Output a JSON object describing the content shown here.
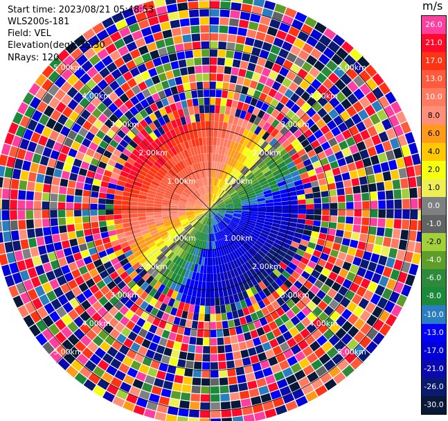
{
  "info": {
    "start_time": "Start time: 2023/08/21 05:48:53",
    "instrument": "WLS200s-181",
    "field": "Field: VEL",
    "elevation": "Elevation(deg): 35.30",
    "nrays": "NRays: 120"
  },
  "colorbar": {
    "unit": "m/s",
    "levels": [
      {
        "value": 26.0,
        "label": "26.0",
        "color": "#ff3fa0"
      },
      {
        "value": 21.0,
        "label": "21.0",
        "color": "#ff0a2a"
      },
      {
        "value": 17.0,
        "label": "17.0",
        "color": "#ff3414"
      },
      {
        "value": 13.0,
        "label": "13.0",
        "color": "#ff5a3c"
      },
      {
        "value": 10.0,
        "label": "10.0",
        "color": "#ff7a60"
      },
      {
        "value": 8.0,
        "label": "8.0",
        "color": "#ff8f78"
      },
      {
        "value": 6.0,
        "label": "6.0",
        "color": "#ff9a1a"
      },
      {
        "value": 4.0,
        "label": "4.0",
        "color": "#ffc800"
      },
      {
        "value": 2.0,
        "label": "2.0",
        "color": "#f5ff10"
      },
      {
        "value": 1.0,
        "label": "1.0",
        "color": "#eeee55"
      },
      {
        "value": 0.0,
        "label": "0.0",
        "color": "#7f8082"
      },
      {
        "value": -1.0,
        "label": "-1.0",
        "color": "#626364"
      },
      {
        "value": -2.0,
        "label": "-2.0",
        "color": "#a2cf3a"
      },
      {
        "value": -4.0,
        "label": "-4.0",
        "color": "#5c9e28"
      },
      {
        "value": -6.0,
        "label": "-6.0",
        "color": "#2d8a3a"
      },
      {
        "value": -8.0,
        "label": "-8.0",
        "color": "#1a8a3a"
      },
      {
        "value": -10.0,
        "label": "-10.0",
        "color": "#2a7ec0"
      },
      {
        "value": -13.0,
        "label": "-13.0",
        "color": "#0000ff"
      },
      {
        "value": -17.0,
        "label": "-17.0",
        "color": "#0000d8"
      },
      {
        "value": -21.0,
        "label": "-21.0",
        "color": "#0a0ab0"
      },
      {
        "value": -26.0,
        "label": "-26.0",
        "color": "#0a1a70"
      },
      {
        "value": -30.0,
        "label": "-30.0",
        "color": "#081838"
      }
    ]
  },
  "chart_data": {
    "type": "heatmap",
    "subtype": "polar PPI (plan position indicator)",
    "field": "VEL",
    "units": "m/s",
    "rays": 120,
    "range_rings_km": [
      1.0,
      2.0,
      3.0,
      4.0,
      5.0
    ],
    "range_ring_labels": [
      "1.00km",
      "2.00km",
      "3.00km",
      "4.00km",
      "5.00km"
    ],
    "max_range_km": 5.4,
    "grid": true,
    "colorbar_placement": "right",
    "pattern_description": {
      "inner_core_range_km": [
        0.0,
        2.5
      ],
      "positive_velocity_sector": "north-west half (red/pink, up to ~21 m/s)",
      "negative_velocity_sector": "south-east half (blue, down to ~-21 m/s)",
      "zero_velocity_line": "south-west to north-east diagonal (yellow/green)",
      "outer_range_km": [
        2.5,
        5.4
      ],
      "outer_character": "noisy, all colors"
    }
  }
}
